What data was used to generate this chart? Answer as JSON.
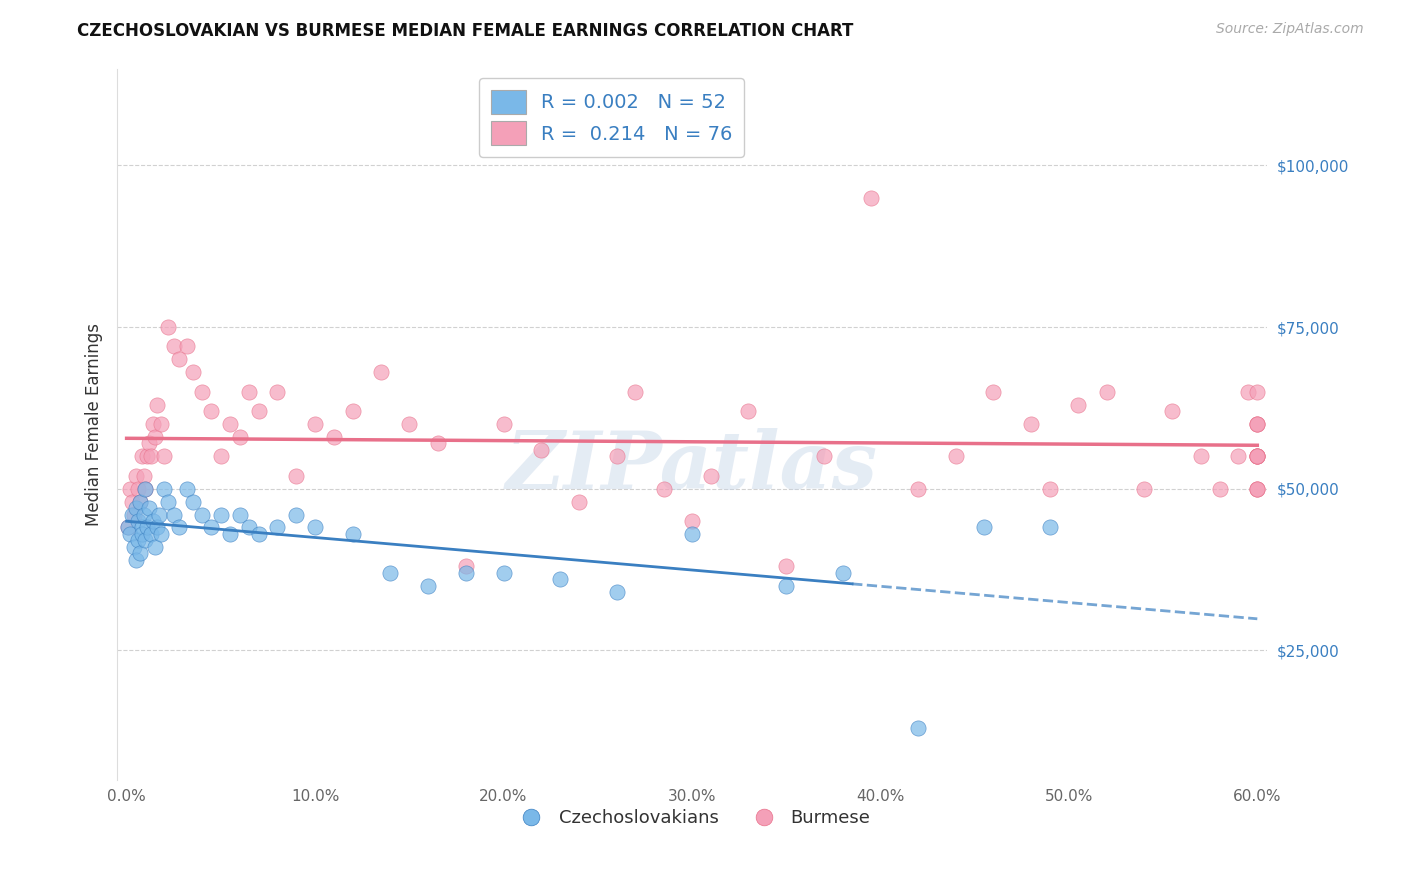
{
  "title": "CZECHOSLOVAKIAN VS BURMESE MEDIAN FEMALE EARNINGS CORRELATION CHART",
  "source_text": "Source: ZipAtlas.com",
  "ylabel": "Median Female Earnings",
  "xlim": [
    -0.005,
    0.605
  ],
  "ylim": [
    5000,
    115000
  ],
  "xtick_labels": [
    "0.0%",
    "",
    "",
    "",
    "",
    "",
    "",
    "",
    "",
    "",
    "10.0%",
    "",
    "",
    "",
    "",
    "",
    "",
    "",
    "",
    "",
    "20.0%",
    "",
    "",
    "",
    "",
    "",
    "",
    "",
    "",
    "",
    "30.0%",
    "",
    "",
    "",
    "",
    "",
    "",
    "",
    "",
    "",
    "40.0%",
    "",
    "",
    "",
    "",
    "",
    "",
    "",
    "",
    "",
    "50.0%",
    "",
    "",
    "",
    "",
    "",
    "",
    "",
    "",
    "",
    "60.0%"
  ],
  "xtick_vals": [
    0.0,
    0.01,
    0.02,
    0.03,
    0.04,
    0.05,
    0.06,
    0.07,
    0.08,
    0.09,
    0.1,
    0.11,
    0.12,
    0.13,
    0.14,
    0.15,
    0.16,
    0.17,
    0.18,
    0.19,
    0.2,
    0.21,
    0.22,
    0.23,
    0.24,
    0.25,
    0.26,
    0.27,
    0.28,
    0.29,
    0.3,
    0.31,
    0.32,
    0.33,
    0.34,
    0.35,
    0.36,
    0.37,
    0.38,
    0.39,
    0.4,
    0.41,
    0.42,
    0.43,
    0.44,
    0.45,
    0.46,
    0.47,
    0.48,
    0.49,
    0.5,
    0.51,
    0.52,
    0.53,
    0.54,
    0.55,
    0.56,
    0.57,
    0.58,
    0.59,
    0.6
  ],
  "ytick_vals": [
    25000,
    50000,
    75000,
    100000
  ],
  "ytick_labels": [
    "$25,000",
    "$50,000",
    "$75,000",
    "$100,000"
  ],
  "color_czech": "#7ab8e8",
  "color_burmese": "#f4a0b8",
  "color_czech_line": "#3a7fc1",
  "color_burmese_line": "#e8708a",
  "color_yaxis": "#3a7fc1",
  "R_czech": 0.002,
  "N_czech": 52,
  "R_burmese": 0.214,
  "N_burmese": 76,
  "legend_labels": [
    "Czechoslovakians",
    "Burmese"
  ],
  "watermark": "ZIPatlas",
  "background_color": "#ffffff",
  "grid_color": "#cccccc",
  "czech_x": [
    0.001,
    0.002,
    0.003,
    0.004,
    0.005,
    0.005,
    0.006,
    0.006,
    0.007,
    0.007,
    0.008,
    0.008,
    0.009,
    0.01,
    0.01,
    0.011,
    0.012,
    0.013,
    0.014,
    0.015,
    0.016,
    0.017,
    0.018,
    0.02,
    0.022,
    0.025,
    0.028,
    0.032,
    0.035,
    0.04,
    0.045,
    0.05,
    0.055,
    0.06,
    0.065,
    0.07,
    0.08,
    0.09,
    0.1,
    0.12,
    0.14,
    0.16,
    0.18,
    0.2,
    0.23,
    0.26,
    0.3,
    0.35,
    0.38,
    0.42,
    0.455,
    0.49
  ],
  "czech_y": [
    44000,
    43000,
    46000,
    41000,
    39000,
    47000,
    42000,
    45000,
    40000,
    48000,
    44000,
    43000,
    46000,
    42000,
    50000,
    44000,
    47000,
    43000,
    45000,
    41000,
    44000,
    46000,
    43000,
    50000,
    48000,
    46000,
    44000,
    50000,
    48000,
    46000,
    44000,
    46000,
    43000,
    46000,
    44000,
    43000,
    44000,
    46000,
    44000,
    43000,
    37000,
    35000,
    37000,
    37000,
    36000,
    34000,
    43000,
    35000,
    37000,
    13000,
    44000,
    44000
  ],
  "burmese_x": [
    0.001,
    0.002,
    0.003,
    0.004,
    0.005,
    0.006,
    0.007,
    0.008,
    0.009,
    0.01,
    0.011,
    0.012,
    0.013,
    0.014,
    0.015,
    0.016,
    0.018,
    0.02,
    0.022,
    0.025,
    0.028,
    0.032,
    0.035,
    0.04,
    0.045,
    0.05,
    0.055,
    0.06,
    0.065,
    0.07,
    0.08,
    0.09,
    0.1,
    0.11,
    0.12,
    0.135,
    0.15,
    0.165,
    0.18,
    0.2,
    0.22,
    0.24,
    0.26,
    0.27,
    0.285,
    0.3,
    0.31,
    0.33,
    0.35,
    0.37,
    0.395,
    0.42,
    0.44,
    0.46,
    0.48,
    0.49,
    0.505,
    0.52,
    0.54,
    0.555,
    0.57,
    0.58,
    0.59,
    0.595,
    0.6,
    0.6,
    0.6,
    0.6,
    0.6,
    0.6,
    0.6,
    0.6,
    0.6,
    0.6,
    0.6,
    0.6
  ],
  "burmese_y": [
    44000,
    50000,
    48000,
    46000,
    52000,
    50000,
    48000,
    55000,
    52000,
    50000,
    55000,
    57000,
    55000,
    60000,
    58000,
    63000,
    60000,
    55000,
    75000,
    72000,
    70000,
    72000,
    68000,
    65000,
    62000,
    55000,
    60000,
    58000,
    65000,
    62000,
    65000,
    52000,
    60000,
    58000,
    62000,
    68000,
    60000,
    57000,
    38000,
    60000,
    56000,
    48000,
    55000,
    65000,
    50000,
    45000,
    52000,
    62000,
    38000,
    55000,
    95000,
    50000,
    55000,
    65000,
    60000,
    50000,
    63000,
    65000,
    50000,
    62000,
    55000,
    50000,
    55000,
    65000,
    50000,
    60000,
    55000,
    65000,
    55000,
    50000,
    55000,
    60000,
    55000,
    50000,
    55000,
    60000
  ]
}
